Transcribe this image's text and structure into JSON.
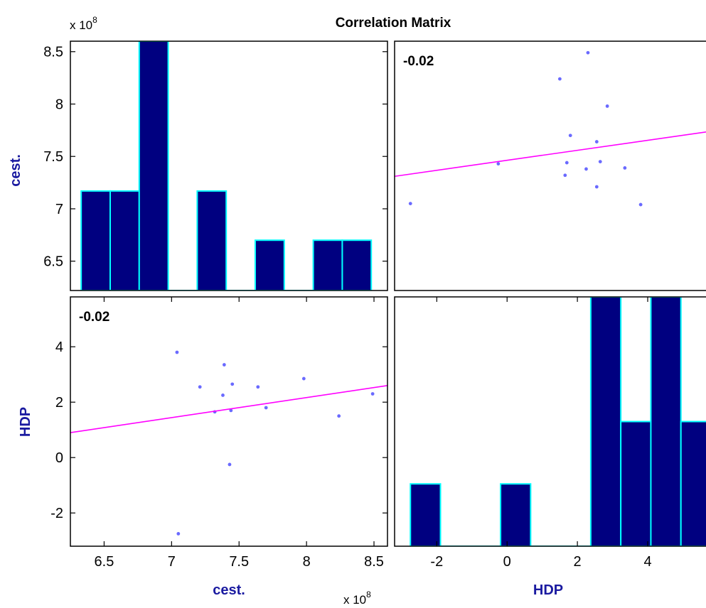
{
  "chart_data": {
    "type": "scatter-matrix",
    "title": "Correlation Matrix",
    "variables": [
      "cest.",
      "HDP"
    ],
    "scale_label": {
      "base": "x 10",
      "exponent": "8"
    },
    "colors": {
      "bar_fill": "#000080",
      "bar_edge": "#00ffff",
      "point": "#6a6aff",
      "fit_line": "#ff00ff",
      "label": "#1a1aa0",
      "frame": "#000000"
    },
    "observations": {
      "cest_x1e8": [
        7.04,
        7.21,
        7.32,
        7.38,
        7.39,
        7.43,
        7.44,
        7.45,
        7.64,
        7.7,
        7.98,
        8.24,
        8.49,
        7.05
      ],
      "HDP": [
        3.8,
        2.55,
        1.65,
        2.25,
        3.35,
        -0.25,
        1.7,
        2.65,
        2.55,
        1.8,
        2.85,
        1.5,
        2.3,
        -2.75
      ]
    },
    "panels": [
      {
        "row": 0,
        "col": 0,
        "type": "histogram",
        "variable": "cest.",
        "xlim": [
          6.25,
          8.6
        ],
        "ylim": [
          6.22,
          8.6
        ],
        "yticks": [
          6.5,
          7,
          7.5,
          8,
          8.5
        ],
        "ytick_labels": [
          "6.5",
          "7",
          "7.5",
          "8",
          "8.5"
        ],
        "bins": [
          {
            "from": 6.33,
            "to": 6.545,
            "height": 7.17
          },
          {
            "from": 6.545,
            "to": 6.76,
            "height": 7.17
          },
          {
            "from": 6.76,
            "to": 6.975,
            "height": 8.6
          },
          {
            "from": 6.975,
            "to": 7.19,
            "height": 6.22
          },
          {
            "from": 7.19,
            "to": 7.405,
            "height": 7.17
          },
          {
            "from": 7.405,
            "to": 7.62,
            "height": 6.22
          },
          {
            "from": 7.62,
            "to": 7.835,
            "height": 6.7
          },
          {
            "from": 7.835,
            "to": 8.05,
            "height": 6.22
          },
          {
            "from": 8.05,
            "to": 8.265,
            "height": 6.7
          },
          {
            "from": 8.265,
            "to": 8.48,
            "height": 6.7
          }
        ]
      },
      {
        "row": 0,
        "col": 1,
        "type": "scatter",
        "x": "HDP",
        "y": "cest.",
        "xlim": [
          -3.2,
          5.8
        ],
        "ylim": [
          6.22,
          8.6
        ],
        "corr_label": "-0.02",
        "fit_line": {
          "x": [
            -3.2,
            5.8
          ],
          "y": [
            7.31,
            7.74
          ]
        }
      },
      {
        "row": 1,
        "col": 0,
        "type": "scatter",
        "x": "cest.",
        "y": "HDP",
        "xlim": [
          6.25,
          8.6
        ],
        "ylim": [
          -3.2,
          5.8
        ],
        "yticks": [
          -2,
          0,
          2,
          4
        ],
        "ytick_labels": [
          "-2",
          "0",
          "2",
          "4"
        ],
        "xticks": [
          6.5,
          7,
          7.5,
          8,
          8.5
        ],
        "xtick_labels": [
          "6.5",
          "7",
          "7.5",
          "8",
          "8.5"
        ],
        "corr_label": "-0.02",
        "fit_line": {
          "x": [
            6.25,
            8.6
          ],
          "y": [
            0.9,
            2.6
          ]
        }
      },
      {
        "row": 1,
        "col": 1,
        "type": "histogram",
        "variable": "HDP",
        "xlim": [
          -3.2,
          5.8
        ],
        "ylim": [
          -3.2,
          5.8
        ],
        "xticks": [
          -2,
          0,
          2,
          4
        ],
        "xtick_labels": [
          "-2",
          "0",
          "2",
          "4"
        ],
        "bins": [
          {
            "from": -2.75,
            "to": -1.895,
            "height": -0.95
          },
          {
            "from": -1.895,
            "to": -1.04,
            "height": -3.2
          },
          {
            "from": -1.04,
            "to": -0.185,
            "height": -3.2
          },
          {
            "from": -0.185,
            "to": 0.67,
            "height": -0.95
          },
          {
            "from": 0.67,
            "to": 1.525,
            "height": -3.2
          },
          {
            "from": 1.525,
            "to": 2.38,
            "height": -3.2
          },
          {
            "from": 2.38,
            "to": 3.235,
            "height": 5.8
          },
          {
            "from": 3.235,
            "to": 4.09,
            "height": 1.3
          },
          {
            "from": 4.09,
            "to": 4.945,
            "height": 5.8
          },
          {
            "from": 4.945,
            "to": 5.8,
            "height": 1.3
          }
        ]
      }
    ]
  }
}
